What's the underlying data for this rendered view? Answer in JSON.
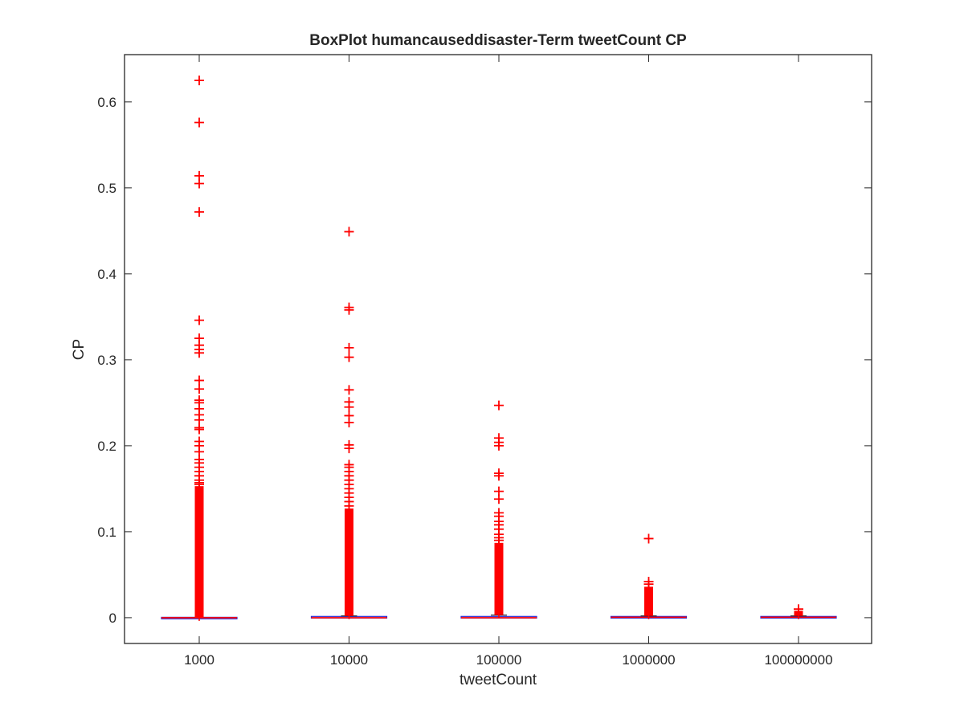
{
  "chart_data": {
    "type": "box",
    "title": "BoxPlot humancauseddisaster-Term tweetCount CP",
    "xlabel": "tweetCount",
    "ylabel": "CP",
    "ylim": [
      -0.03,
      0.655
    ],
    "yticks": [
      0,
      0.1,
      0.2,
      0.3,
      0.4,
      0.5,
      0.6
    ],
    "ytick_labels": [
      "0",
      "0.1",
      "0.2",
      "0.3",
      "0.4",
      "0.5",
      "0.6"
    ],
    "categories": [
      "1000",
      "10000",
      "100000",
      "1000000",
      "100000000"
    ],
    "grid": false,
    "colors": {
      "outlier": "#ff0000",
      "median": "#ff0000",
      "box": "#2b2bd6",
      "axis": "#262626"
    },
    "boxes": [
      {
        "category": "1000",
        "q1": 0,
        "median": 0,
        "q3": 0,
        "whisker_low": 0,
        "whisker_high": 0,
        "dense_outliers": [
          0,
          0.153
        ],
        "outliers": [
          0.625,
          0.576,
          0.514,
          0.505,
          0.472,
          0.346,
          0.325,
          0.317,
          0.312,
          0.308,
          0.276,
          0.266,
          0.253,
          0.25,
          0.243,
          0.236,
          0.23,
          0.221,
          0.219,
          0.205,
          0.2,
          0.193,
          0.184,
          0.18,
          0.175,
          0.17,
          0.165,
          0.16,
          0.157,
          0.155
        ]
      },
      {
        "category": "10000",
        "q1": 0,
        "median": 0,
        "q3": 0.001,
        "whisker_low": 0,
        "whisker_high": 0.002,
        "dense_outliers": [
          0.002,
          0.127
        ],
        "outliers": [
          0.449,
          0.361,
          0.358,
          0.314,
          0.303,
          0.265,
          0.251,
          0.245,
          0.235,
          0.227,
          0.201,
          0.197,
          0.178,
          0.175,
          0.17,
          0.165,
          0.16,
          0.155,
          0.15,
          0.145,
          0.14,
          0.135,
          0.13
        ]
      },
      {
        "category": "100000",
        "q1": 0,
        "median": 0,
        "q3": 0.001,
        "whisker_low": 0,
        "whisker_high": 0.003,
        "dense_outliers": [
          0.003,
          0.087
        ],
        "outliers": [
          0.247,
          0.209,
          0.204,
          0.2,
          0.168,
          0.165,
          0.147,
          0.138,
          0.122,
          0.118,
          0.112,
          0.108,
          0.103,
          0.097,
          0.093,
          0.09
        ]
      },
      {
        "category": "1000000",
        "q1": 0,
        "median": 0.0005,
        "q3": 0.001,
        "whisker_low": 0,
        "whisker_high": 0.002,
        "dense_outliers": [
          0.002,
          0.036
        ],
        "outliers": [
          0.092,
          0.042,
          0.039
        ]
      },
      {
        "category": "100000000",
        "q1": 0,
        "median": 0.0005,
        "q3": 0.001,
        "whisker_low": 0,
        "whisker_high": 0.002,
        "dense_outliers": [
          0.002,
          0.008
        ],
        "outliers": [
          0.01
        ]
      }
    ]
  }
}
